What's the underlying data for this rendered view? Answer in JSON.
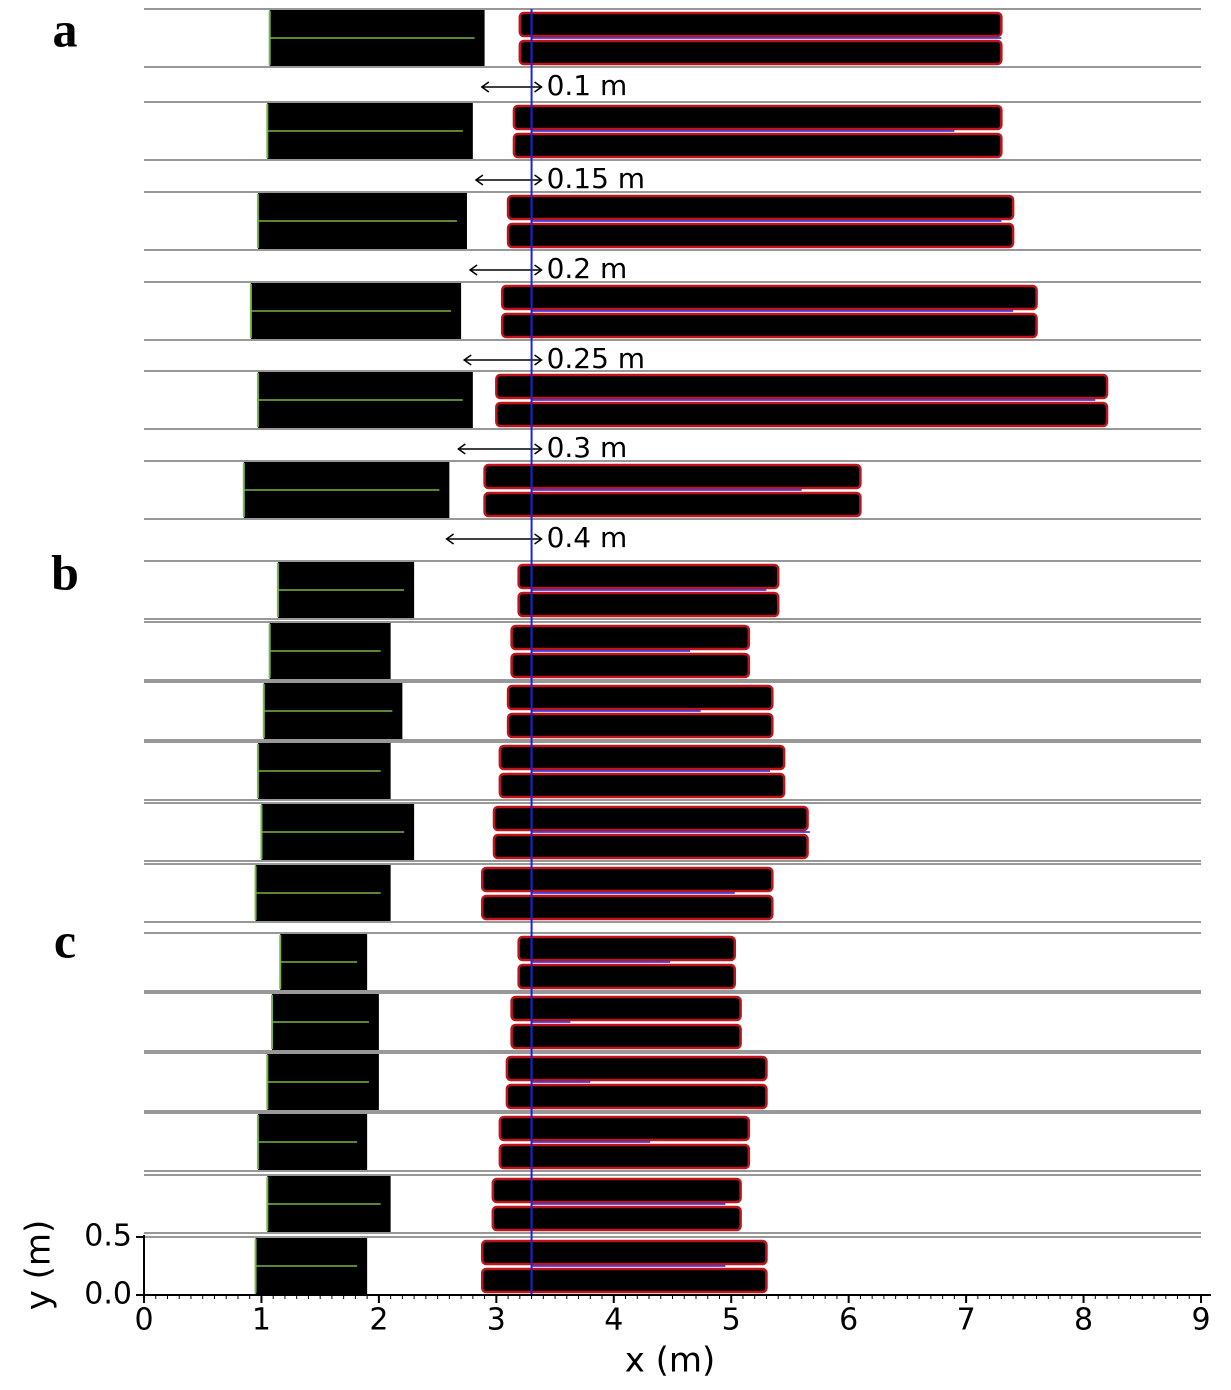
{
  "chart_data": {
    "type": "strips",
    "x_label": "x (m)",
    "y_label": "y (m)",
    "xlim": [
      0,
      9
    ],
    "xticks": [
      0,
      1,
      2,
      3,
      4,
      5,
      6,
      7,
      8,
      9
    ],
    "ylim": [
      0,
      0.5
    ],
    "yticks": [
      {
        "value": 0,
        "label": "0.0"
      },
      {
        "value": 0.5,
        "label": "0.5"
      }
    ],
    "reference_x": 3.3,
    "panels": [
      {
        "label": "a",
        "strips": [
          {
            "green_x": 1.07,
            "up_end": 2.9,
            "red_start": 3.2,
            "red_end": 7.3,
            "blue_end": 7.3,
            "gap_label": "0.1 m"
          },
          {
            "green_x": 1.05,
            "up_end": 2.8,
            "red_start": 3.15,
            "red_end": 7.3,
            "blue_end": 6.9,
            "gap_label": "0.15 m"
          },
          {
            "green_x": 0.97,
            "up_end": 2.75,
            "red_start": 3.1,
            "red_end": 7.4,
            "blue_end": 7.3,
            "gap_label": "0.2 m"
          },
          {
            "green_x": 0.91,
            "up_end": 2.7,
            "red_start": 3.05,
            "red_end": 7.6,
            "blue_end": 7.4,
            "gap_label": "0.25 m"
          },
          {
            "green_x": 0.97,
            "up_end": 2.8,
            "red_start": 3.0,
            "red_end": 8.2,
            "blue_end": 8.1,
            "gap_label": "0.3 m"
          },
          {
            "green_x": 0.85,
            "up_end": 2.6,
            "red_start": 2.9,
            "red_end": 6.1,
            "blue_end": 5.6,
            "gap_label": "0.4 m"
          }
        ]
      },
      {
        "label": "b",
        "strips": [
          {
            "green_x": 1.14,
            "up_end": 2.3,
            "red_start": 3.19,
            "red_end": 5.4,
            "blue_end": 5.3
          },
          {
            "green_x": 1.07,
            "up_end": 2.1,
            "red_start": 3.13,
            "red_end": 5.15,
            "blue_end": 4.65
          },
          {
            "green_x": 1.02,
            "up_end": 2.2,
            "red_start": 3.1,
            "red_end": 5.35,
            "blue_end": 4.74
          },
          {
            "green_x": 0.97,
            "up_end": 2.1,
            "red_start": 3.03,
            "red_end": 5.45,
            "blue_end": 5.33
          },
          {
            "green_x": 1.0,
            "up_end": 2.3,
            "red_start": 2.98,
            "red_end": 5.65,
            "blue_end": 5.67
          },
          {
            "green_x": 0.95,
            "up_end": 2.1,
            "red_start": 2.88,
            "red_end": 5.35,
            "blue_end": 5.03
          }
        ]
      },
      {
        "label": "c",
        "strips": [
          {
            "green_x": 1.16,
            "up_end": 1.9,
            "red_start": 3.19,
            "red_end": 5.03,
            "blue_end": 4.48
          },
          {
            "green_x": 1.09,
            "up_end": 2.0,
            "red_start": 3.13,
            "red_end": 5.08,
            "blue_end": 3.63
          },
          {
            "green_x": 1.05,
            "up_end": 2.0,
            "red_start": 3.09,
            "red_end": 5.3,
            "blue_end": 3.8
          },
          {
            "green_x": 0.97,
            "up_end": 1.9,
            "red_start": 3.03,
            "red_end": 5.15,
            "blue_end": 4.31
          },
          {
            "green_x": 1.05,
            "up_end": 2.1,
            "red_start": 2.97,
            "red_end": 5.08,
            "blue_end": 4.95
          },
          {
            "green_x": 0.95,
            "up_end": 1.9,
            "red_start": 2.88,
            "red_end": 5.3,
            "blue_end": 4.95
          }
        ]
      }
    ]
  }
}
